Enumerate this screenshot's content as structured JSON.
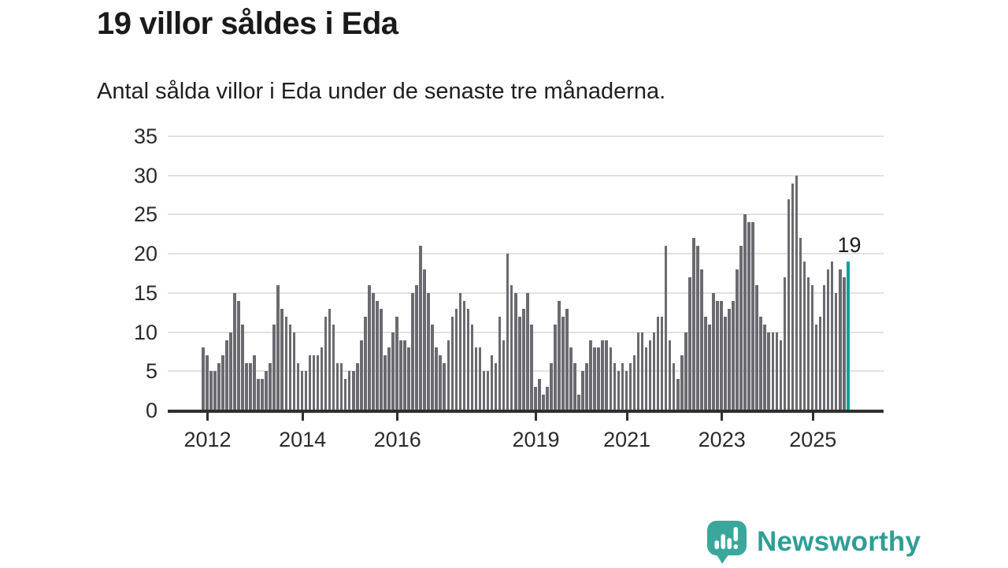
{
  "header": {
    "title": "19 villor såldes i Eda",
    "subtitle": "Antal sålda villor i Eda under de senaste tre månaderna."
  },
  "chart_data": {
    "type": "bar",
    "title": "19 villor såldes i Eda",
    "subtitle": "Antal sålda villor i Eda under de senaste tre månaderna.",
    "xlabel": "",
    "ylabel": "",
    "ylim": [
      0,
      35
    ],
    "grid": true,
    "y_ticks": [
      0,
      5,
      10,
      15,
      20,
      25,
      30,
      35
    ],
    "x_tick_labels": [
      "2012",
      "2014",
      "2016",
      "2019",
      "2021",
      "2023",
      "2025"
    ],
    "x_tick_indices": [
      1,
      25,
      49,
      84,
      107,
      131,
      154
    ],
    "values": [
      8,
      7,
      5,
      5,
      6,
      7,
      9,
      10,
      15,
      14,
      11,
      6,
      6,
      7,
      4,
      4,
      5,
      6,
      11,
      16,
      13,
      12,
      11,
      10,
      6,
      5,
      5,
      7,
      7,
      7,
      8,
      12,
      13,
      11,
      6,
      6,
      4,
      5,
      5,
      6,
      9,
      12,
      16,
      15,
      14,
      13,
      7,
      8,
      10,
      12,
      9,
      9,
      8,
      15,
      16,
      21,
      18,
      15,
      11,
      8,
      7,
      6,
      9,
      12,
      13,
      15,
      14,
      13,
      11,
      8,
      8,
      5,
      5,
      7,
      6,
      12,
      9,
      20,
      16,
      15,
      12,
      13,
      15,
      11,
      3,
      4,
      2,
      3,
      6,
      11,
      14,
      12,
      13,
      8,
      6,
      2,
      5,
      6,
      9,
      8,
      8,
      9,
      9,
      8,
      6,
      5,
      6,
      5,
      6,
      7,
      10,
      10,
      8,
      9,
      10,
      12,
      12,
      21,
      9,
      6,
      4,
      7,
      10,
      17,
      22,
      21,
      18,
      12,
      11,
      15,
      14,
      14,
      12,
      13,
      14,
      18,
      21,
      25,
      24,
      24,
      16,
      12,
      11,
      10,
      10,
      10,
      9,
      17,
      27,
      29,
      30,
      22,
      19,
      17,
      16,
      11,
      12,
      16,
      18,
      19,
      15,
      18,
      17,
      19
    ],
    "highlight_last_bar": true,
    "annotation": {
      "text": "19",
      "bar_index": 163
    },
    "colors": {
      "bar": "#6a6a70",
      "highlight": "#00a49c",
      "gridline": "#e1e1e1",
      "axis": "#2f2f2f",
      "text": "#2b2b2b"
    }
  },
  "footer": {
    "logo_icon": "bar-chart-speech-bubble-icon",
    "logo_text": "Newsworthy",
    "logo_color": "#2f9e94"
  }
}
